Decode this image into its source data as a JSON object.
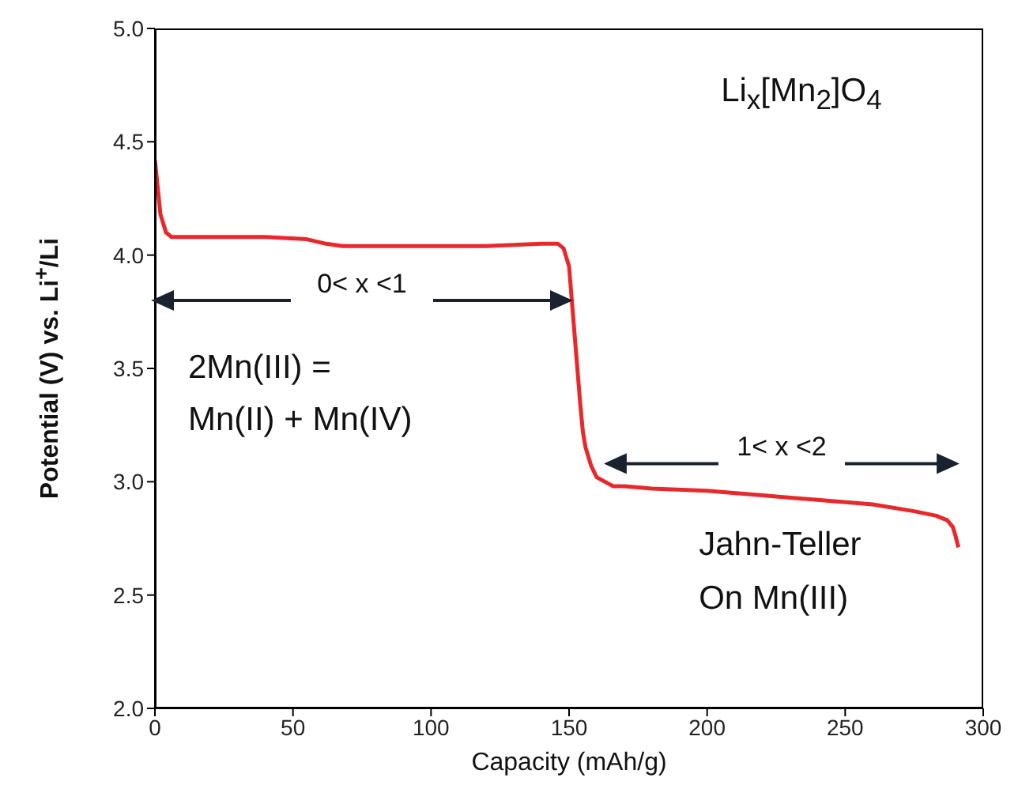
{
  "chart_data": {
    "type": "line",
    "xlabel": "Capacity (mAh/g)",
    "ylabel": "Potential (V) vs. Li$^{+}$/Li",
    "x": [
      0,
      1,
      2,
      4,
      6,
      10,
      20,
      40,
      55,
      62,
      68,
      80,
      100,
      120,
      140,
      146,
      148,
      150,
      151,
      152,
      153,
      154,
      155,
      156,
      158,
      160,
      163,
      166,
      170,
      180,
      200,
      220,
      240,
      260,
      275,
      283,
      287,
      289,
      290,
      291
    ],
    "series": [
      {
        "color": "#e8282a",
        "values": [
          4.42,
          4.3,
          4.18,
          4.1,
          4.08,
          4.08,
          4.08,
          4.08,
          4.07,
          4.05,
          4.04,
          4.04,
          4.04,
          4.04,
          4.05,
          4.05,
          4.03,
          3.95,
          3.8,
          3.65,
          3.5,
          3.35,
          3.22,
          3.15,
          3.07,
          3.02,
          3.0,
          2.98,
          2.98,
          2.97,
          2.96,
          2.94,
          2.92,
          2.9,
          2.87,
          2.85,
          2.83,
          2.8,
          2.76,
          2.71
        ]
      }
    ],
    "xlim": [
      0,
      300
    ],
    "xticks": [
      0,
      50,
      100,
      150,
      200,
      250,
      300
    ],
    "ylim": [
      2.0,
      5.0
    ],
    "yticks": [
      {
        "value": 2.0,
        "label": "2.0"
      },
      {
        "value": 2.5,
        "label": "2.5"
      },
      {
        "value": 3.0,
        "label": "3.0"
      },
      {
        "value": 3.5,
        "label": "3.5"
      },
      {
        "value": 4.0,
        "label": "4.0"
      },
      {
        "value": 4.5,
        "label": "4.5"
      },
      {
        "value": 5.0,
        "label": "5.0"
      }
    ],
    "grid": false,
    "marker": "none",
    "line_style": "solid",
    "annotations": [
      "Li$_{x}$[Mn$_{2}$]O$_{4}$",
      "0< x <1",
      "2Mn(III) =",
      "Mn(II) + Mn(IV)",
      "1< x <2",
      "Jahn-Teller",
      "On Mn(III)"
    ]
  }
}
